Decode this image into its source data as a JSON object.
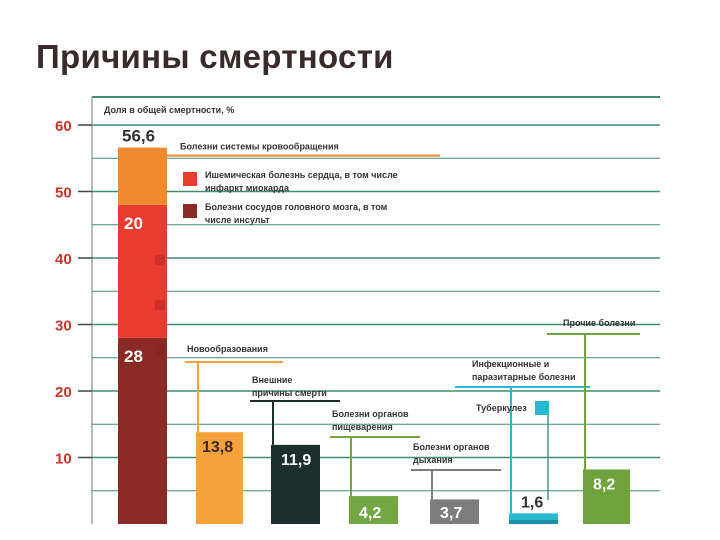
{
  "slide": {
    "title": "Причины смертности"
  },
  "colors": {
    "grid": "#3e8f6e",
    "tick": "#c0392b",
    "cvd_total": "#f08a2e",
    "ihd": "#ea3b30",
    "stroke": "#8a2a24",
    "neoplasm": "#f6a23c",
    "external": "#1b2f2c",
    "digestive": "#73a743",
    "respiratory": "#7d7d7d",
    "infectious": "#2bb7cf",
    "tuberculosis": "#2bb7cf",
    "other": "#6fa33d"
  },
  "chart_data": {
    "type": "bar",
    "title": "",
    "ylabel": "Доля в общей смертности, %",
    "ylim": [
      0,
      62
    ],
    "yticks": [
      10,
      20,
      30,
      40,
      50,
      60
    ],
    "grid": true,
    "stacked_bar": {
      "name": "Болезни системы кровообращения",
      "total": 56.6,
      "total_label": "56,6",
      "segments": [
        {
          "name": "Болезни сосудов головного мозга, в том числе инсульт",
          "value": 28,
          "label": "28",
          "color_key": "stroke"
        },
        {
          "name": "Ишемическая болезнь сердца, в том числе инфаркт миокарда",
          "value": 20,
          "label": "20",
          "color_key": "ihd"
        },
        {
          "name": "Болезни системы кровообращения",
          "value": 8.6,
          "label": "",
          "color_key": "cvd_total"
        }
      ]
    },
    "legend": [
      {
        "text_lines": [
          "Ишемическая болезнь сердца, в том числе",
          "инфаркт миокарда"
        ],
        "color_key": "ihd"
      },
      {
        "text_lines": [
          "Болезни сосудов головного мозга, в том",
          "числе инсульт"
        ],
        "color_key": "stroke"
      }
    ],
    "categories": [
      {
        "name": "Новообразования",
        "lines": [
          "Новообразования"
        ],
        "value": 13.8,
        "label": "13,8",
        "color_key": "neoplasm"
      },
      {
        "name": "Внешние причины смерти",
        "lines": [
          "Внешние",
          "причины смерти"
        ],
        "value": 11.9,
        "label": "11,9",
        "color_key": "external"
      },
      {
        "name": "Болезни органов пищеварения",
        "lines": [
          "Болезни органов",
          "пищеварения"
        ],
        "value": 4.2,
        "label": "4,2",
        "color_key": "digestive"
      },
      {
        "name": "Болезни органов дыхания",
        "lines": [
          "Болезни органов",
          "дыхания"
        ],
        "value": 3.7,
        "label": "3,7",
        "color_key": "respiratory"
      },
      {
        "name": "Инфекционные и паразитарные болезни",
        "lines": [
          "Инфекционные и",
          "паразитарные болезни"
        ],
        "value": 1.6,
        "label": "1,6",
        "color_key": "infectious"
      },
      {
        "name": "Прочие болезни",
        "lines": [
          "Прочие болезни"
        ],
        "value": 8.2,
        "label": "8,2",
        "color_key": "other"
      }
    ],
    "extra_legend": {
      "text": "Туберкулез",
      "color_key": "tuberculosis"
    }
  }
}
